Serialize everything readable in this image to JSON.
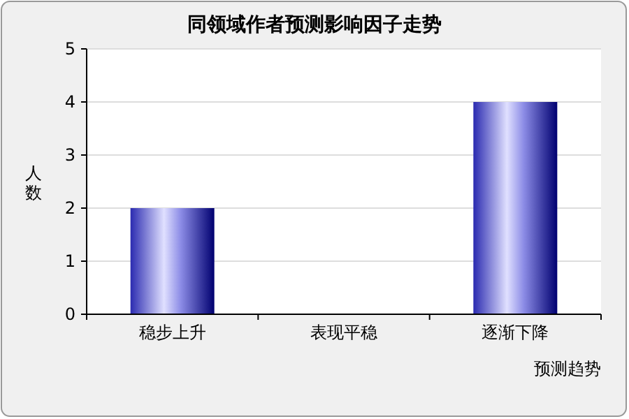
{
  "chart_data": {
    "type": "bar",
    "title": "同领域作者预测影响因子走势",
    "xlabel": "预测趋势",
    "ylabel": "人数",
    "categories": [
      "稳步上升",
      "表现平稳",
      "逐渐下降"
    ],
    "values": [
      2,
      0,
      4
    ],
    "color": "#8c8ce6",
    "ylim": [
      0,
      5
    ],
    "yticks": [
      0,
      1,
      2,
      3,
      4,
      5
    ],
    "grid": "y"
  }
}
